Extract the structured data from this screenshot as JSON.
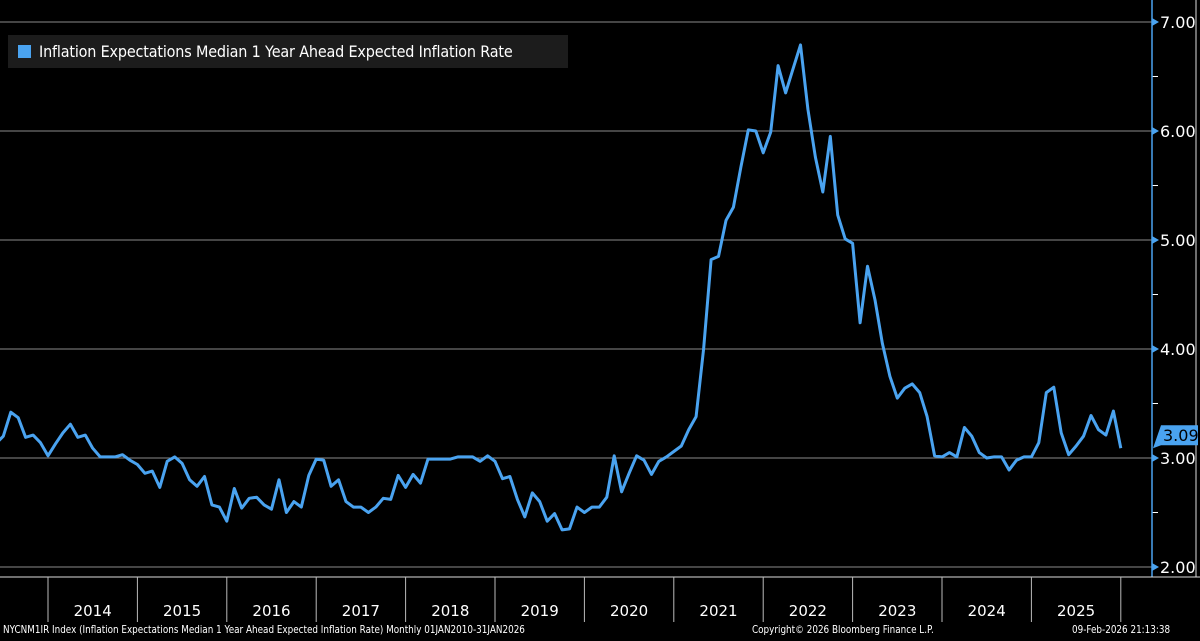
{
  "chart_data": {
    "type": "line",
    "title": "",
    "legend": {
      "label": "Inflation Expectations Median 1 Year Ahead Expected Inflation Rate",
      "placement": "top-left",
      "color": "#4aa3f0"
    },
    "xlabel": "",
    "ylabel": "",
    "ylim": [
      2.0,
      7.0
    ],
    "y_ticks": [
      "2.00",
      "3.00",
      "4.00",
      "5.00",
      "6.00",
      "7.00"
    ],
    "x_tick_labels": [
      "2014",
      "2015",
      "2016",
      "2017",
      "2018",
      "2019",
      "2020",
      "2021",
      "2022",
      "2023",
      "2024",
      "2025"
    ],
    "grid": true,
    "y_axis_side": "right",
    "last_value_label": "3.09",
    "series": [
      {
        "name": "Inflation Expectations Median 1 Year Ahead Expected Inflation Rate",
        "color": "#4aa3f0",
        "x": [
          "2013-06",
          "2013-07",
          "2013-08",
          "2013-09",
          "2013-10",
          "2013-11",
          "2013-12",
          "2014-01",
          "2014-02",
          "2014-03",
          "2014-04",
          "2014-05",
          "2014-06",
          "2014-07",
          "2014-08",
          "2014-09",
          "2014-10",
          "2014-11",
          "2014-12",
          "2015-01",
          "2015-02",
          "2015-03",
          "2015-04",
          "2015-05",
          "2015-06",
          "2015-07",
          "2015-08",
          "2015-09",
          "2015-10",
          "2015-11",
          "2015-12",
          "2016-01",
          "2016-02",
          "2016-03",
          "2016-04",
          "2016-05",
          "2016-06",
          "2016-07",
          "2016-08",
          "2016-09",
          "2016-10",
          "2016-11",
          "2016-12",
          "2017-01",
          "2017-02",
          "2017-03",
          "2017-04",
          "2017-05",
          "2017-06",
          "2017-07",
          "2017-08",
          "2017-09",
          "2017-10",
          "2017-11",
          "2017-12",
          "2018-01",
          "2018-02",
          "2018-03",
          "2018-04",
          "2018-05",
          "2018-06",
          "2018-07",
          "2018-08",
          "2018-09",
          "2018-10",
          "2018-11",
          "2018-12",
          "2019-01",
          "2019-02",
          "2019-03",
          "2019-04",
          "2019-05",
          "2019-06",
          "2019-07",
          "2019-08",
          "2019-09",
          "2019-10",
          "2019-11",
          "2019-12",
          "2020-01",
          "2020-02",
          "2020-03",
          "2020-04",
          "2020-05",
          "2020-06",
          "2020-07",
          "2020-08",
          "2020-09",
          "2020-10",
          "2020-11",
          "2020-12",
          "2021-01",
          "2021-02",
          "2021-03",
          "2021-04",
          "2021-05",
          "2021-06",
          "2021-07",
          "2021-08",
          "2021-09",
          "2021-10",
          "2021-11",
          "2021-12",
          "2022-01",
          "2022-02",
          "2022-03",
          "2022-04",
          "2022-05",
          "2022-06",
          "2022-07",
          "2022-08",
          "2022-09",
          "2022-10",
          "2022-11",
          "2022-12",
          "2023-01",
          "2023-02",
          "2023-03",
          "2023-04",
          "2023-05",
          "2023-06",
          "2023-07",
          "2023-08",
          "2023-09",
          "2023-10",
          "2023-11",
          "2023-12",
          "2024-01",
          "2024-02",
          "2024-03",
          "2024-04",
          "2024-05",
          "2024-06",
          "2024-07",
          "2024-08",
          "2024-09",
          "2024-10",
          "2024-11",
          "2024-12",
          "2025-01",
          "2025-02",
          "2025-03",
          "2025-04",
          "2025-05",
          "2025-06",
          "2025-07",
          "2025-08",
          "2025-09",
          "2025-10",
          "2025-11",
          "2025-12",
          "2026-01"
        ],
        "values": [
          3.13,
          3.2,
          3.42,
          3.37,
          3.19,
          3.21,
          3.14,
          3.02,
          3.13,
          3.23,
          3.31,
          3.19,
          3.21,
          3.09,
          3.01,
          3.01,
          3.01,
          3.03,
          2.98,
          2.94,
          2.86,
          2.88,
          2.73,
          2.97,
          3.01,
          2.95,
          2.8,
          2.74,
          2.83,
          2.57,
          2.55,
          2.42,
          2.72,
          2.54,
          2.63,
          2.64,
          2.57,
          2.53,
          2.8,
          2.5,
          2.6,
          2.55,
          2.84,
          2.99,
          2.98,
          2.74,
          2.8,
          2.6,
          2.55,
          2.55,
          2.5,
          2.55,
          2.63,
          2.62,
          2.84,
          2.73,
          2.85,
          2.77,
          2.99,
          2.99,
          2.99,
          2.99,
          3.01,
          3.01,
          3.01,
          2.97,
          3.02,
          2.97,
          2.81,
          2.83,
          2.62,
          2.46,
          2.68,
          2.6,
          2.42,
          2.49,
          2.34,
          2.35,
          2.55,
          2.5,
          2.55,
          2.55,
          2.64,
          3.02,
          2.69,
          2.86,
          3.02,
          2.98,
          2.85,
          2.97,
          3.01,
          3.06,
          3.11,
          3.26,
          3.38,
          4.0,
          4.82,
          4.85,
          5.18,
          5.3,
          5.67,
          6.01,
          6.0,
          5.8,
          5.99,
          6.6,
          6.35,
          6.57,
          6.79,
          6.2,
          5.76,
          5.44,
          5.95,
          5.23,
          5.01,
          4.97,
          4.24,
          4.76,
          4.45,
          4.05,
          3.75,
          3.55,
          3.64,
          3.68,
          3.6,
          3.38,
          3.02,
          3.01,
          3.05,
          3.01,
          3.28,
          3.2,
          3.05,
          3.0,
          3.01,
          3.01,
          2.89,
          2.98,
          3.01,
          3.01,
          3.14,
          3.6,
          3.65,
          3.23,
          3.03,
          3.11,
          3.2,
          3.39,
          3.26,
          3.21,
          3.43,
          3.09
        ]
      }
    ]
  },
  "footer": {
    "source": "NYCNM1IR Index (Inflation Expectations Median 1 Year Ahead Expected Inflation Rate) Monthly 01JAN2010-31JAN2026",
    "copyright": "Copyright© 2026 Bloomberg Finance L.P.",
    "timestamp": "09-Feb-2026 21:13:38"
  }
}
